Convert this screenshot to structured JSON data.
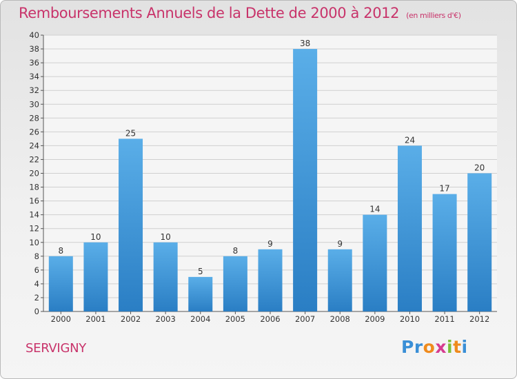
{
  "title": "Remboursements Annuels de la Dette de 2000 à 2012",
  "subtitle": "(en milliers d'€)",
  "commune": "SERVIGNY",
  "logo": {
    "text": "Proxiti",
    "letters": [
      {
        "char": "P",
        "color": "#3a8fd6"
      },
      {
        "char": "r",
        "color": "#3a8fd6"
      },
      {
        "char": "o",
        "color": "#ef8b1d"
      },
      {
        "char": "x",
        "color": "#d63c8f"
      },
      {
        "char": "i",
        "color": "#7cbf3a"
      },
      {
        "char": "t",
        "color": "#ef8b1d"
      },
      {
        "char": "i",
        "color": "#3a8fd6"
      }
    ]
  },
  "colors": {
    "accent": "#c8336a",
    "bar_top": "#5aaee8",
    "bar_bottom": "#2a7ec4",
    "grid": "#cfcfcf",
    "plot_bg": "#f5f5f5"
  },
  "chart_data": {
    "type": "bar",
    "categories": [
      "2000",
      "2001",
      "2002",
      "2003",
      "2004",
      "2005",
      "2006",
      "2007",
      "2008",
      "2009",
      "2010",
      "2011",
      "2012"
    ],
    "values": [
      8,
      10,
      25,
      10,
      5,
      8,
      9,
      38,
      9,
      14,
      24,
      17,
      20
    ],
    "ylim": [
      0,
      40
    ],
    "yticks": [
      0,
      2,
      4,
      6,
      8,
      10,
      12,
      14,
      16,
      18,
      20,
      22,
      24,
      26,
      28,
      30,
      32,
      34,
      36,
      38,
      40
    ],
    "grid": true,
    "data_labels": true
  }
}
